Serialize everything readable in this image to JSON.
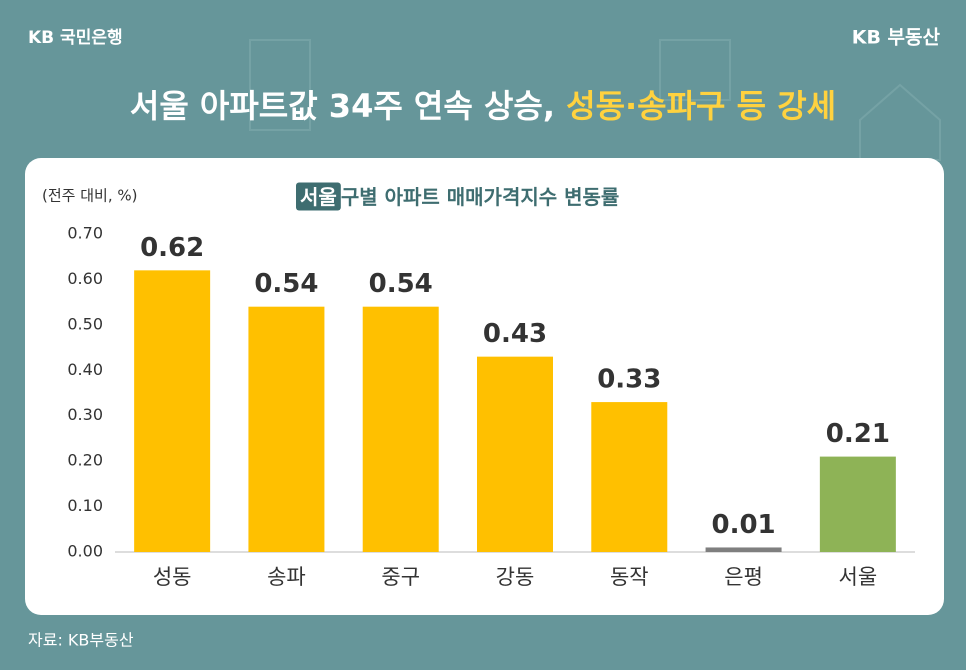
{
  "header": {
    "logo": "KB 국민은행",
    "brand": "KB 부동산"
  },
  "title": {
    "main": "서울 아파트값 34주 연속 상승, ",
    "highlight": "성동·송파구 등 강세"
  },
  "chart_data": {
    "type": "bar",
    "title_highlight": "서울",
    "title": "구별 아파트 매매가격지수 변동률",
    "y_label": "(전주 대비, %)",
    "categories": [
      "성동",
      "송파",
      "중구",
      "강동",
      "동작",
      "은평",
      "서울"
    ],
    "values": [
      0.62,
      0.54,
      0.54,
      0.43,
      0.33,
      0.01,
      0.21
    ],
    "colors": [
      "#ffc000",
      "#ffc000",
      "#ffc000",
      "#ffc000",
      "#ffc000",
      "#7f7f7f",
      "#8eb356"
    ],
    "ylim": [
      0,
      0.7
    ],
    "yticks": [
      {
        "value": 0,
        "label": "0.00"
      },
      {
        "value": 0.1,
        "label": "0.10"
      },
      {
        "value": 0.2,
        "label": "0.20"
      },
      {
        "value": 0.3,
        "label": "0.30"
      },
      {
        "value": 0.4,
        "label": "0.40"
      },
      {
        "value": 0.5,
        "label": "0.50"
      },
      {
        "value": 0.6,
        "label": "0.60"
      },
      {
        "value": 0.7,
        "label": "0.70"
      }
    ]
  },
  "source": "자료: KB부동산"
}
